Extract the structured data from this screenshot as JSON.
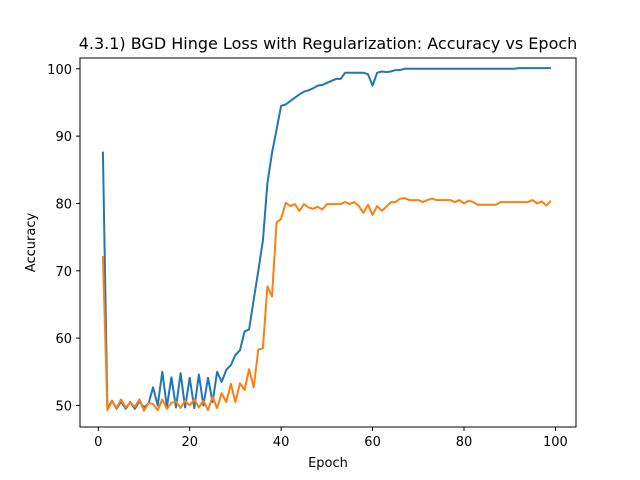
{
  "chart_data": {
    "type": "line",
    "title": "4.3.1) BGD Hinge Loss with Regularization: Accuracy vs Epoch",
    "xlabel": "Epoch",
    "ylabel": "Accuracy",
    "xlim": [
      -4,
      104.5
    ],
    "ylim": [
      46.8,
      101.6
    ],
    "xticks": [
      0,
      20,
      40,
      60,
      80,
      100
    ],
    "yticks": [
      50,
      60,
      70,
      80,
      90,
      100
    ],
    "grid": false,
    "legend": "none",
    "x": [
      1,
      2,
      3,
      4,
      5,
      6,
      7,
      8,
      9,
      10,
      11,
      12,
      13,
      14,
      15,
      16,
      17,
      18,
      19,
      20,
      21,
      22,
      23,
      24,
      25,
      26,
      27,
      28,
      29,
      30,
      31,
      32,
      33,
      34,
      35,
      36,
      37,
      38,
      39,
      40,
      41,
      42,
      43,
      44,
      45,
      46,
      47,
      48,
      49,
      50,
      51,
      52,
      53,
      54,
      55,
      56,
      57,
      58,
      59,
      60,
      61,
      62,
      63,
      64,
      65,
      66,
      67,
      68,
      69,
      70,
      71,
      72,
      73,
      74,
      75,
      76,
      77,
      78,
      79,
      80,
      81,
      82,
      83,
      84,
      85,
      86,
      87,
      88,
      89,
      90,
      91,
      92,
      93,
      94,
      95,
      96,
      97,
      98,
      99
    ],
    "series": [
      {
        "color": "#1f77b4",
        "values": [
          87.7,
          49.5,
          50.7,
          49.5,
          50.6,
          49.5,
          50.5,
          49.5,
          50.6,
          49.7,
          50.3,
          52.7,
          50.0,
          55.0,
          49.8,
          54.2,
          49.7,
          54.8,
          49.7,
          54.1,
          49.6,
          54.6,
          50.0,
          54.1,
          50.5,
          55.0,
          53.5,
          55.3,
          56.0,
          57.5,
          58.2,
          61.0,
          61.3,
          65.7,
          70.0,
          74.5,
          83.0,
          87.5,
          91.0,
          94.5,
          94.7,
          95.2,
          95.7,
          96.2,
          96.6,
          96.8,
          97.1,
          97.5,
          97.6,
          97.9,
          98.2,
          98.5,
          98.5,
          99.4,
          99.4,
          99.4,
          99.4,
          99.4,
          99.2,
          97.5,
          99.4,
          99.6,
          99.5,
          99.6,
          99.8,
          99.8,
          100,
          100,
          100,
          100,
          100,
          100,
          100,
          100,
          100,
          100,
          100,
          100,
          100,
          100,
          100,
          100,
          100,
          100,
          100,
          100,
          100,
          100,
          100,
          100,
          100,
          100.1,
          100.1,
          100.1,
          100.1,
          100.1,
          100.1,
          100.1,
          100.1
        ]
      },
      {
        "color": "#ff7f0e",
        "values": [
          72.2,
          49.3,
          50.6,
          49.6,
          50.9,
          49.7,
          50.4,
          49.8,
          50.9,
          49.2,
          50.4,
          50.2,
          49.3,
          50.9,
          49.5,
          50.4,
          50.6,
          49.6,
          50.7,
          50.0,
          50.9,
          49.7,
          50.7,
          49.3,
          51.3,
          49.6,
          51.8,
          50.5,
          53.2,
          50.5,
          53.3,
          52.3,
          55.4,
          52.7,
          58.3,
          58.5,
          67.7,
          66.2,
          77.2,
          77.7,
          80.1,
          79.6,
          79.9,
          78.9,
          79.9,
          79.4,
          79.2,
          79.5,
          79.1,
          79.9,
          79.9,
          79.9,
          79.9,
          80.2,
          79.9,
          80.2,
          79.6,
          78.6,
          79.8,
          78.3,
          79.6,
          78.9,
          79.5,
          80.2,
          80.2,
          80.7,
          80.8,
          80.5,
          80.5,
          80.5,
          80.2,
          80.5,
          80.7,
          80.5,
          80.5,
          80.5,
          80.5,
          80.2,
          80.5,
          80.0,
          80.4,
          80.2,
          79.8,
          79.8,
          79.8,
          79.8,
          79.8,
          80.2,
          80.2,
          80.2,
          80.2,
          80.2,
          80.2,
          80.2,
          80.5,
          80.0,
          80.3,
          79.7,
          80.4
        ]
      }
    ]
  }
}
